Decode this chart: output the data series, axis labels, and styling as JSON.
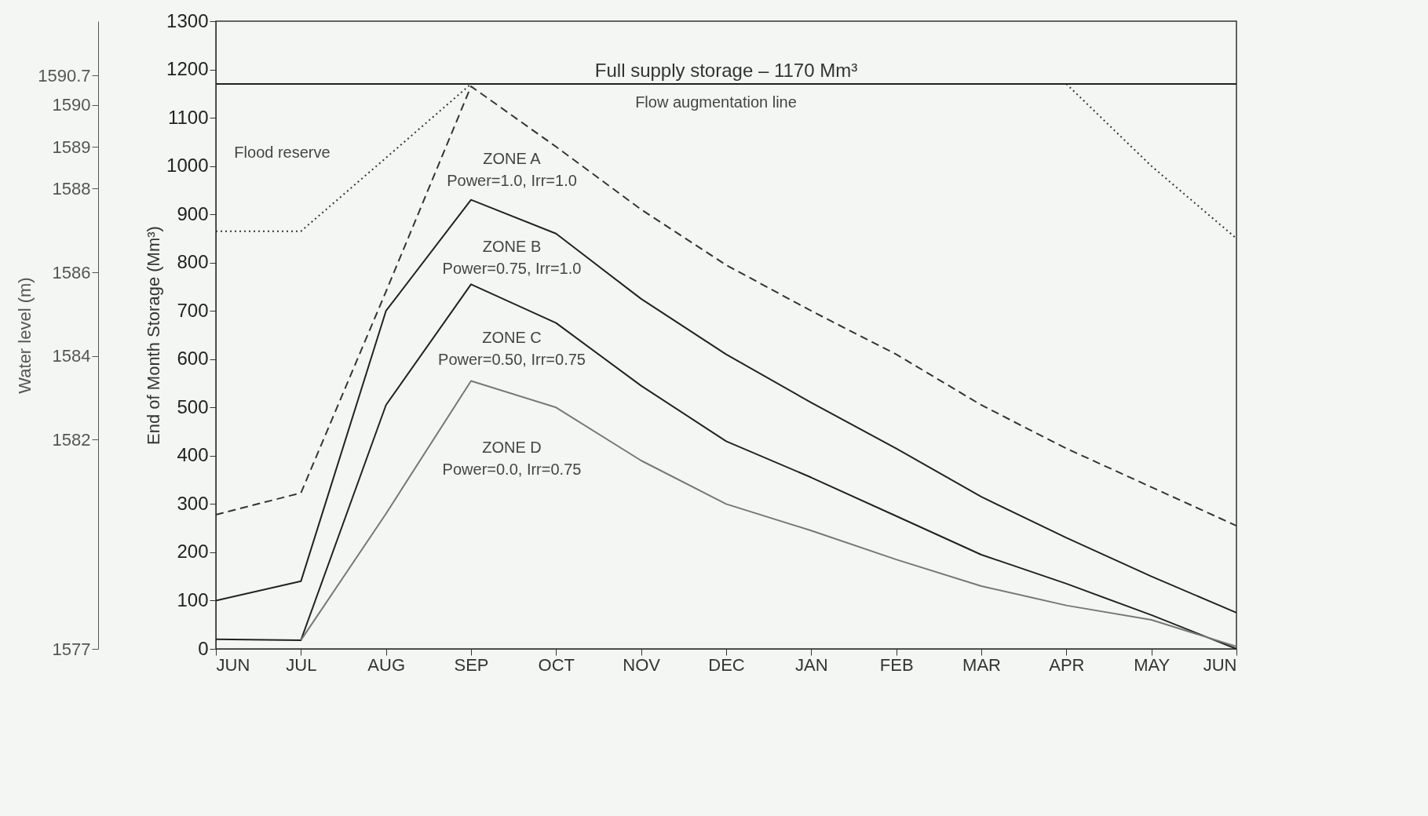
{
  "chart_data": {
    "type": "line",
    "ylabel": "End of Month Storage (Mm³)",
    "y2label": "Water level (m)",
    "categories": [
      "JUN",
      "JUL",
      "AUG",
      "SEP",
      "OCT",
      "NOV",
      "DEC",
      "JAN",
      "FEB",
      "MAR",
      "APR",
      "MAY",
      "JUN"
    ],
    "ylim": [
      0,
      1300
    ],
    "yticks": [
      0,
      100,
      200,
      300,
      400,
      500,
      600,
      700,
      800,
      900,
      1000,
      1100,
      1200,
      1300
    ],
    "y2lim": [
      1577,
      1592
    ],
    "y2ticks": [
      1590.7,
      1590,
      1589,
      1588,
      1586,
      1584,
      1582,
      1577
    ],
    "series": [
      {
        "color": "#333333",
        "line_style": "dashed",
        "values": [
          278,
          323,
          740,
          1165,
          1040,
          910,
          795,
          700,
          610,
          505,
          415,
          335,
          255
        ]
      },
      {
        "color": "#222222",
        "line_style": "solid",
        "values": [
          100,
          140,
          700,
          930,
          860,
          725,
          610,
          510,
          415,
          315,
          230,
          150,
          75
        ]
      },
      {
        "color": "#222222",
        "line_style": "solid",
        "values": [
          20,
          18,
          505,
          755,
          675,
          545,
          430,
          355,
          275,
          195,
          135,
          70,
          0
        ]
      },
      {
        "color": "#777777",
        "line_style": "solid",
        "values": [
          null,
          18,
          280,
          555,
          500,
          390,
          300,
          245,
          185,
          130,
          90,
          60,
          5
        ]
      },
      {
        "color": "#333333",
        "line_style": "dotted",
        "values": [
          865,
          865,
          1017,
          1170,
          null,
          null,
          null,
          null,
          null,
          null,
          1170,
          1000,
          850
        ]
      }
    ],
    "ref_lines": [
      {
        "axis": "y",
        "value": 1170,
        "label": "Full supply storage – 1170 Mm³",
        "color": "#222222"
      }
    ],
    "annotations": [
      "Flood reserve",
      "Flow augmentation line",
      "ZONE A",
      "Power=1.0, Irr=1.0",
      "ZONE B",
      "Power=0.75, Irr=1.0",
      "ZONE C",
      "Power=0.50, Irr=0.75",
      "ZONE D",
      "Power=0.0, Irr=0.75"
    ],
    "grid": false
  }
}
